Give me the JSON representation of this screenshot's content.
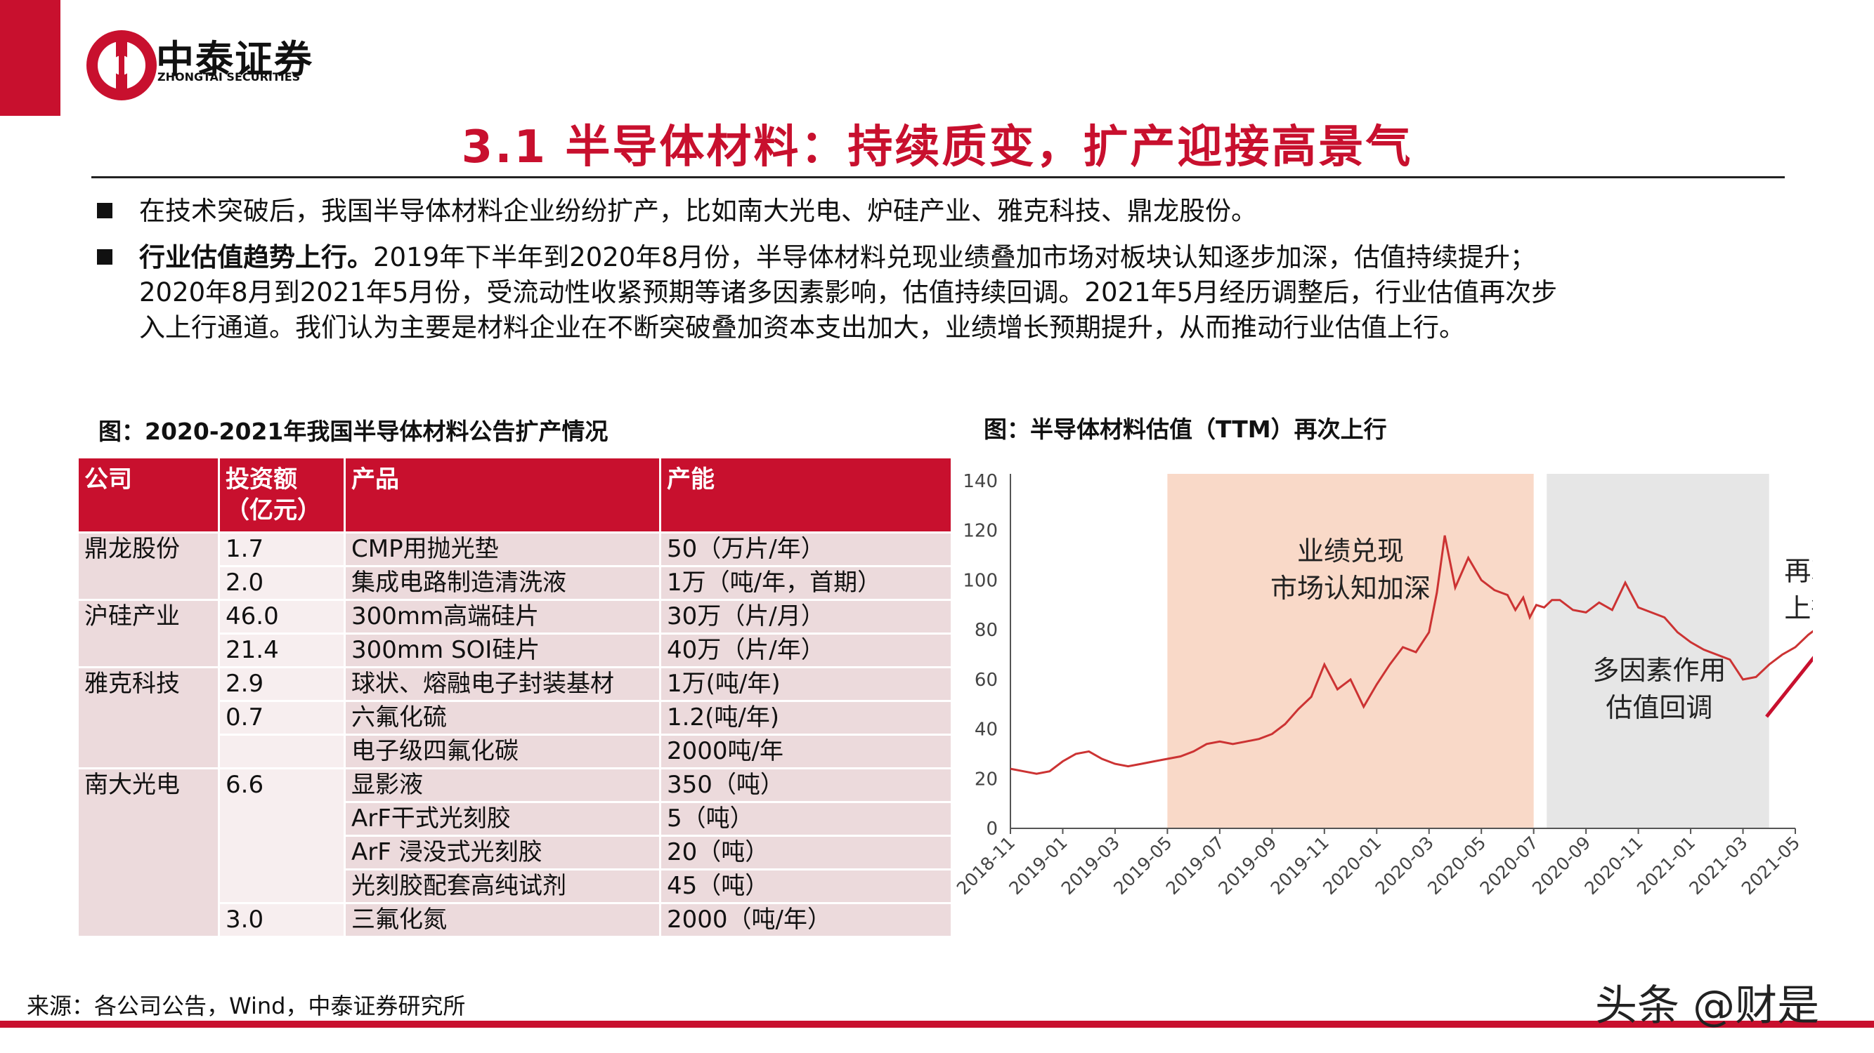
{
  "header": {
    "brand_cn": "中泰证券",
    "brand_en": "ZHONGTAI SECURITIES",
    "title": "3.1 半导体材料：持续质变，扩产迎接高景气",
    "accent_color": "#c8102e"
  },
  "bullets": [
    {
      "bold": "",
      "text": "在技术突破后，我国半导体材料企业纷纷扩产，比如南大光电、炉硅产业、雅克科技、鼎龙股份。"
    },
    {
      "bold": "行业估值趋势上行。",
      "line1": "2019年下半年到2020年8月份，半导体材料兑现业绩叠加市场对板块认知逐步加深，估值持续提升；",
      "line2": "2020年8月到2021年5月份，受流动性收紧预期等诸多因素影响，估值持续回调。2021年5月经历调整后，行业估值再次步",
      "line3": "入上行通道。我们认为主要是材料企业在不断突破叠加资本支出加大，业绩增长预期提升，从而推动行业估值上行。"
    }
  ],
  "table": {
    "caption": "图：2020-2021年我国半导体材料公告扩产情况",
    "headers": [
      "公司",
      "投资额（亿元）",
      "产品",
      "产能"
    ],
    "header_inv_line1": "投资额",
    "header_inv_line2": "（亿元）",
    "rows": [
      {
        "company": "鼎龙股份",
        "investment": "1.7",
        "product": "CMP用抛光垫",
        "capacity": "50（万片/年）"
      },
      {
        "company": "",
        "investment": "2.0",
        "product": "集成电路制造清洗液",
        "capacity": "1万（吨/年，首期）"
      },
      {
        "company": "沪硅产业",
        "investment": "46.0",
        "product": "300mm高端硅片",
        "capacity": "30万（片/月）"
      },
      {
        "company": "",
        "investment": "21.4",
        "product": "300mm SOI硅片",
        "capacity": "40万（片/年）"
      },
      {
        "company": "雅克科技",
        "investment": "2.9",
        "product": "球状、熔融电子封装基材",
        "capacity": "1万(吨/年)"
      },
      {
        "company": "",
        "investment": "0.7",
        "product": "六氟化硫",
        "capacity": "1.2(吨/年)"
      },
      {
        "company": "",
        "investment": "",
        "product": "电子级四氟化碳",
        "capacity": "2000吨/年"
      },
      {
        "company": "南大光电",
        "investment": "6.6",
        "product": "显影液",
        "capacity": "350（吨）"
      },
      {
        "company": "",
        "investment": "",
        "product": "ArF干式光刻胶",
        "capacity": "5（吨）"
      },
      {
        "company": "",
        "investment": "",
        "product": "ArF 浸没式光刻胶",
        "capacity": "20（吨）"
      },
      {
        "company": "",
        "investment": "",
        "product": "光刻胶配套高纯试剂",
        "capacity": "45（吨）"
      },
      {
        "company": "",
        "investment": "3.0",
        "product": "三氟化氮",
        "capacity": "2000（吨/年）"
      }
    ]
  },
  "chart_caption": "图：半导体材料估值（TTM）再次上行",
  "chart_data": {
    "type": "line",
    "title": "",
    "xlabel": "",
    "ylabel": "",
    "ylim": [
      0,
      140
    ],
    "yticks": [
      0,
      20,
      40,
      60,
      80,
      100,
      120,
      140
    ],
    "xticks": [
      "2018-11",
      "2019-01",
      "2019-03",
      "2019-05",
      "2019-07",
      "2019-09",
      "2019-11",
      "2020-01",
      "2020-03",
      "2020-05",
      "2020-07",
      "2020-09",
      "2020-11",
      "2021-01",
      "2021-03",
      "2021-05"
    ],
    "grid": false,
    "line_color": "#cc3333",
    "series": [
      {
        "x": [
          0,
          0.5,
          1,
          1.5,
          2,
          2.5,
          3,
          3.5,
          4,
          4.5,
          5,
          5.5,
          6,
          6.5,
          7,
          7.5,
          8,
          8.5,
          9,
          9.5,
          10,
          10.5,
          11,
          11.5,
          12,
          12.5,
          13,
          13.5,
          14,
          14.5,
          15,
          15.5,
          16,
          16.3,
          16.6,
          17,
          17.5,
          18,
          18.5,
          19,
          19.3,
          19.6,
          19.85,
          20.1,
          20.4,
          20.7,
          21,
          21.5,
          22,
          22.5,
          23,
          23.5,
          24,
          24.5,
          25,
          25.5,
          26,
          26.5,
          27,
          27.5,
          28,
          28.5,
          29,
          29.5,
          30,
          30.5,
          31
        ],
        "values": [
          24,
          23,
          22,
          23,
          27,
          30,
          31,
          28,
          26,
          25,
          26,
          27,
          28,
          29,
          31,
          34,
          35,
          34,
          35,
          36,
          38,
          42,
          48,
          53,
          66,
          56,
          60,
          49,
          58,
          66,
          73,
          71,
          79,
          95,
          118,
          97,
          109,
          100,
          96,
          94,
          88,
          93,
          85,
          90,
          89,
          92,
          92,
          88,
          87,
          91,
          88,
          99,
          89,
          87,
          85,
          79,
          75,
          72,
          70,
          68,
          60,
          61,
          66,
          70,
          73,
          78,
          82
        ]
      }
    ],
    "annotations": [
      {
        "text_line1": "业绩兑现",
        "text_line2": "市场认知加深",
        "region": "2019-05 to 2020-07",
        "color": "#f9d9c8"
      },
      {
        "text_line1": "多因素作用",
        "text_line2": "估值回调",
        "region": "2020-07 to 2021-04",
        "color": "#e6e6e6"
      },
      {
        "text_line1": "再次",
        "text_line2": "上行",
        "arrow": true
      }
    ]
  },
  "footer": {
    "source": "来源：各公司公告，Wind，中泰证券研究所",
    "watermark": "头条 @财是"
  }
}
